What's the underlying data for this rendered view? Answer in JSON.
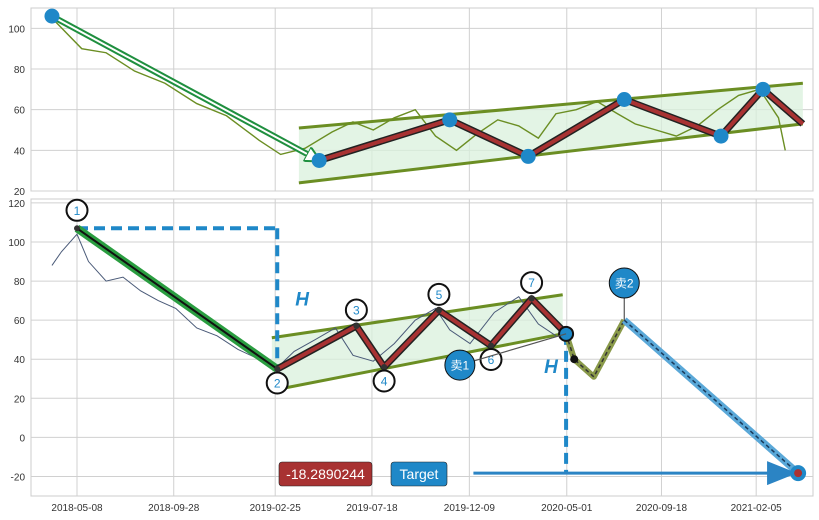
{
  "colors": {
    "price_top": "#6b8e23",
    "price_bottom": "#4a5a78",
    "channel": "#6b8e23",
    "channel_fill": "#d9f0dc",
    "zigzag_outer": "#222222",
    "zigzag_inner": "#a83232",
    "marker": "#1f88c8",
    "drop_line": "#1f8f3f",
    "dashed": "#1f88c8",
    "target_arrow": "#2b84c4",
    "grid": "#d0d0d0",
    "value_badge": "#a83232",
    "target_badge": "#1f88c8"
  },
  "chart_data": [
    {
      "type": "line",
      "name": "top-panel",
      "ylim": [
        20,
        110
      ],
      "yticks": [
        20,
        40,
        60,
        80,
        100
      ],
      "xlim": [
        "2018-03-01",
        "2021-04-30"
      ],
      "grid": true,
      "price_series": {
        "x": [
          "2018-04-01",
          "2018-05-15",
          "2018-06-20",
          "2018-08-01",
          "2018-09-15",
          "2018-11-01",
          "2018-12-15",
          "2019-02-01",
          "2019-03-05",
          "2019-04-10",
          "2019-05-20",
          "2019-06-20",
          "2019-07-20",
          "2019-08-20",
          "2019-09-20",
          "2019-10-20",
          "2019-11-20",
          "2019-12-20",
          "2020-01-20",
          "2020-02-20",
          "2020-03-20",
          "2020-04-15",
          "2020-05-15",
          "2020-06-15",
          "2020-07-15",
          "2020-08-10",
          "2020-09-10",
          "2020-10-10",
          "2020-11-10",
          "2020-12-10",
          "2021-01-10",
          "2021-02-10",
          "2021-03-10",
          "2021-03-20"
        ],
        "y": [
          105,
          90,
          88,
          79,
          73,
          63,
          57,
          45,
          38,
          41,
          49,
          54,
          50,
          56,
          60,
          47,
          40,
          48,
          55,
          52,
          46,
          58,
          60,
          64,
          58,
          53,
          50,
          47,
          52,
          60,
          67,
          70,
          56,
          40
        ]
      },
      "zigzag": {
        "x": [
          "2019-05-01",
          "2019-11-10",
          "2020-03-05",
          "2020-07-25",
          "2020-12-15",
          "2021-02-15",
          "2021-04-15"
        ],
        "y": [
          35,
          55,
          37,
          65,
          47,
          70,
          53
        ]
      },
      "drop_line": {
        "x": [
          "2018-04-01",
          "2019-05-01"
        ],
        "y": [
          106,
          35
        ]
      },
      "channel_upper": {
        "x": [
          "2019-04-01",
          "2021-04-15"
        ],
        "y": [
          51,
          73
        ]
      },
      "channel_lower": {
        "x": [
          "2019-04-01",
          "2021-04-15"
        ],
        "y": [
          24,
          53
        ]
      },
      "markers": {
        "x": [
          "2018-04-01",
          "2019-05-01",
          "2019-11-10",
          "2020-03-05",
          "2020-07-25",
          "2020-12-15",
          "2021-02-15"
        ],
        "y": [
          106,
          35,
          55,
          37,
          65,
          47,
          70
        ]
      }
    },
    {
      "type": "line",
      "name": "bottom-panel",
      "ylim": [
        -30,
        122
      ],
      "yticks": [
        -20,
        0,
        20,
        40,
        60,
        80,
        100,
        120
      ],
      "xlim": [
        "2018-03-01",
        "2021-04-30"
      ],
      "xticks": [
        "2018-05-08",
        "2018-09-28",
        "2019-02-25",
        "2019-07-18",
        "2019-12-09",
        "2020-05-01",
        "2020-09-18",
        "2021-02-05"
      ],
      "grid": true,
      "price_series": {
        "x": [
          "2018-04-01",
          "2018-04-15",
          "2018-05-08",
          "2018-05-25",
          "2018-06-20",
          "2018-07-15",
          "2018-08-10",
          "2018-09-05",
          "2018-10-01",
          "2018-11-01",
          "2018-12-01",
          "2019-01-01",
          "2019-02-01",
          "2019-03-01",
          "2019-03-25",
          "2019-04-25",
          "2019-05-25",
          "2019-06-20",
          "2019-07-20",
          "2019-08-20",
          "2019-09-20",
          "2019-10-20",
          "2019-11-10",
          "2019-12-10",
          "2020-01-15",
          "2020-02-20",
          "2020-03-20",
          "2020-04-15"
        ],
        "y": [
          88,
          95,
          104,
          90,
          80,
          82,
          75,
          70,
          66,
          56,
          52,
          45,
          40,
          36,
          44,
          50,
          56,
          42,
          39,
          48,
          60,
          66,
          55,
          48,
          64,
          72,
          58,
          52
        ]
      },
      "zigzag": {
        "x": [
          "2018-05-08",
          "2019-02-28",
          "2019-06-25",
          "2019-08-05",
          "2019-10-25",
          "2020-01-10",
          "2020-03-10",
          "2020-04-30"
        ],
        "y": [
          107,
          35,
          57,
          36,
          65,
          47,
          71,
          53
        ]
      },
      "channel_upper": {
        "x": [
          "2019-02-20",
          "2020-04-25"
        ],
        "y": [
          51,
          73
        ]
      },
      "channel_lower": {
        "x": [
          "2019-02-20",
          "2020-04-25"
        ],
        "y": [
          24,
          53
        ]
      },
      "projection": {
        "x": [
          "2020-04-30",
          "2020-05-12",
          "2020-06-10",
          "2020-07-25"
        ],
        "y": [
          53,
          40,
          31,
          60
        ]
      },
      "target_line": {
        "x": [
          "2020-07-25",
          "2021-04-08"
        ],
        "y": [
          60,
          -18.29
        ]
      },
      "target_point": {
        "x": "2021-04-08",
        "y": -18.29
      },
      "H_vertical_1": {
        "x": "2019-02-28",
        "y": [
          107,
          35
        ]
      },
      "H_horizontal_1": {
        "x": [
          "2018-05-08",
          "2019-02-28"
        ],
        "y": 107
      },
      "H_vertical_2": {
        "x": "2020-04-30",
        "y": [
          53,
          -18.29
        ]
      },
      "target_arrow": {
        "x": [
          "2019-12-15",
          "2021-04-02"
        ],
        "y": -18.29
      },
      "labels": [
        {
          "text": "1",
          "x": "2018-05-08",
          "y": 107
        },
        {
          "text": "2",
          "x": "2019-02-28",
          "y": 35
        },
        {
          "text": "3",
          "x": "2019-06-25",
          "y": 57
        },
        {
          "text": "4",
          "x": "2019-08-05",
          "y": 36
        },
        {
          "text": "5",
          "x": "2019-10-25",
          "y": 65
        },
        {
          "text": "6",
          "x": "2020-01-10",
          "y": 47
        },
        {
          "text": "7",
          "x": "2020-03-10",
          "y": 71
        }
      ],
      "annotations": {
        "H1": "H",
        "H2": "H",
        "sell1": "卖1",
        "sell2": "卖2",
        "value": "-18.2890244",
        "target": "Target"
      }
    }
  ]
}
